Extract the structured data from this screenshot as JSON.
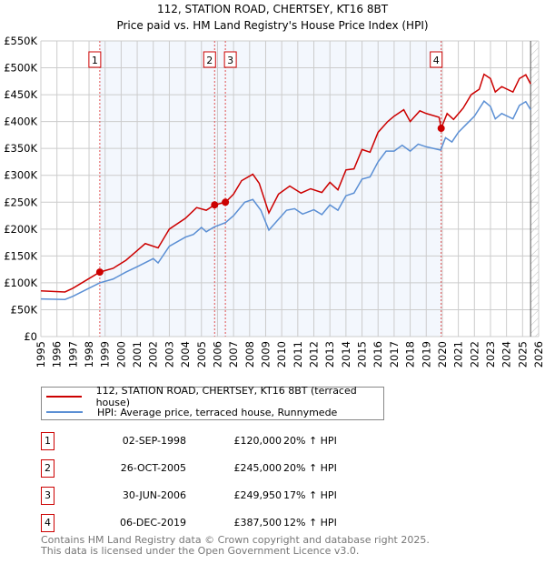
{
  "chart_data": {
    "type": "line",
    "title": "112, STATION ROAD, CHERTSEY, KT16 8BT",
    "subtitle": "Price paid vs. HM Land Registry's House Price Index (HPI)",
    "xlim": [
      1995,
      2026
    ],
    "ylim": [
      0,
      550000
    ],
    "y_ticks": [
      {
        "v": 0,
        "label": "£0"
      },
      {
        "v": 50000,
        "label": "£50K"
      },
      {
        "v": 100000,
        "label": "£100K"
      },
      {
        "v": 150000,
        "label": "£150K"
      },
      {
        "v": 200000,
        "label": "£200K"
      },
      {
        "v": 250000,
        "label": "£250K"
      },
      {
        "v": 300000,
        "label": "£300K"
      },
      {
        "v": 350000,
        "label": "£350K"
      },
      {
        "v": 400000,
        "label": "£400K"
      },
      {
        "v": 450000,
        "label": "£450K"
      },
      {
        "v": 500000,
        "label": "£500K"
      },
      {
        "v": 550000,
        "label": "£550K"
      }
    ],
    "x_ticks": [
      "1995",
      "1996",
      "1997",
      "1998",
      "1999",
      "2000",
      "2001",
      "2002",
      "2003",
      "2004",
      "2005",
      "2006",
      "2007",
      "2008",
      "2009",
      "2010",
      "2011",
      "2012",
      "2013",
      "2014",
      "2015",
      "2016",
      "2017",
      "2018",
      "2019",
      "2020",
      "2021",
      "2022",
      "2023",
      "2024",
      "2025",
      "2026"
    ],
    "grid": true,
    "series": [
      {
        "name": "112, STATION ROAD, CHERTSEY, KT16 8BT (terraced house)",
        "color": "#cc0000",
        "x": [
          1995,
          1996.5,
          1997,
          1998,
          1998.67,
          1999.5,
          2000.3,
          2001,
          2001.5,
          2002.3,
          2003,
          2004,
          2004.7,
          2005.3,
          2005.82,
          2006.5,
          2007,
          2007.5,
          2008.2,
          2008.6,
          2009.2,
          2009.8,
          2010.5,
          2011.2,
          2011.8,
          2012.5,
          2013,
          2013.5,
          2014,
          2014.5,
          2015,
          2015.5,
          2016,
          2016.6,
          2017,
          2017.6,
          2018,
          2018.6,
          2019,
          2019.8,
          2019.93,
          2020.3,
          2020.7,
          2021.3,
          2021.8,
          2022.3,
          2022.6,
          2023,
          2023.3,
          2023.7,
          2024.4,
          2024.8,
          2025.2,
          2025.5
        ],
        "y": [
          85000,
          83000,
          90000,
          108000,
          120000,
          127000,
          142000,
          160000,
          173000,
          165000,
          200000,
          220000,
          240000,
          235000,
          245000,
          250000,
          265000,
          290000,
          302000,
          285000,
          230000,
          265000,
          280000,
          267000,
          275000,
          268000,
          287000,
          273000,
          310000,
          312000,
          348000,
          343000,
          380000,
          400000,
          410000,
          422000,
          400000,
          420000,
          415000,
          408000,
          387500,
          415000,
          404000,
          425000,
          450000,
          460000,
          488000,
          480000,
          455000,
          465000,
          455000,
          480000,
          487000,
          470000
        ]
      },
      {
        "name": "HPI: Average price, terraced house, Runnymede",
        "color": "#5b8fd4",
        "x": [
          1995,
          1996.5,
          1997,
          1998,
          1998.67,
          1999.5,
          2000.3,
          2001,
          2002,
          2002.3,
          2003,
          2004,
          2004.5,
          2005,
          2005.3,
          2005.8,
          2006.5,
          2007,
          2007.7,
          2008.2,
          2008.7,
          2009.2,
          2009.7,
          2010.3,
          2010.8,
          2011.3,
          2012,
          2012.5,
          2013,
          2013.5,
          2014,
          2014.5,
          2015,
          2015.5,
          2016,
          2016.5,
          2017,
          2017.5,
          2018,
          2018.5,
          2019,
          2019.9,
          2020.2,
          2020.6,
          2021,
          2021.5,
          2022,
          2022.6,
          2023,
          2023.3,
          2023.7,
          2024.4,
          2024.8,
          2025.2,
          2025.5
        ],
        "y": [
          70000,
          69000,
          75000,
          90000,
          100000,
          107000,
          120000,
          130000,
          145000,
          137000,
          168000,
          185000,
          190000,
          203000,
          195000,
          204000,
          212000,
          225000,
          250000,
          255000,
          235000,
          198000,
          215000,
          235000,
          238000,
          228000,
          236000,
          227000,
          245000,
          235000,
          262000,
          267000,
          293000,
          297000,
          325000,
          345000,
          345000,
          356000,
          345000,
          358000,
          353000,
          347000,
          370000,
          362000,
          380000,
          395000,
          410000,
          438000,
          428000,
          405000,
          415000,
          405000,
          430000,
          437000,
          422000
        ]
      }
    ],
    "sales": [
      {
        "n": "1",
        "date": "02-SEP-1998",
        "price": "£120,000",
        "hpi": "20% ↑ HPI",
        "x": 1998.67,
        "y": 120000
      },
      {
        "n": "2",
        "date": "26-OCT-2005",
        "price": "£245,000",
        "hpi": "20% ↑ HPI",
        "x": 2005.82,
        "y": 245000
      },
      {
        "n": "3",
        "date": "30-JUN-2006",
        "price": "£249,950",
        "hpi": "17% ↑ HPI",
        "x": 2006.49,
        "y": 249950
      },
      {
        "n": "4",
        "date": "06-DEC-2019",
        "price": "£387,500",
        "hpi": "12% ↑ HPI",
        "x": 2019.93,
        "y": 387500
      }
    ],
    "shaded_range": [
      1998.67,
      2019.93
    ],
    "hatched_from": 2025.5
  },
  "legend": {
    "red": "112, STATION ROAD, CHERTSEY, KT16 8BT (terraced house)",
    "blue": "HPI: Average price, terraced house, Runnymede"
  },
  "footer": {
    "line1": "Contains HM Land Registry data © Crown copyright and database right 2025.",
    "line2": "This data is licensed under the Open Government Licence v3.0."
  }
}
